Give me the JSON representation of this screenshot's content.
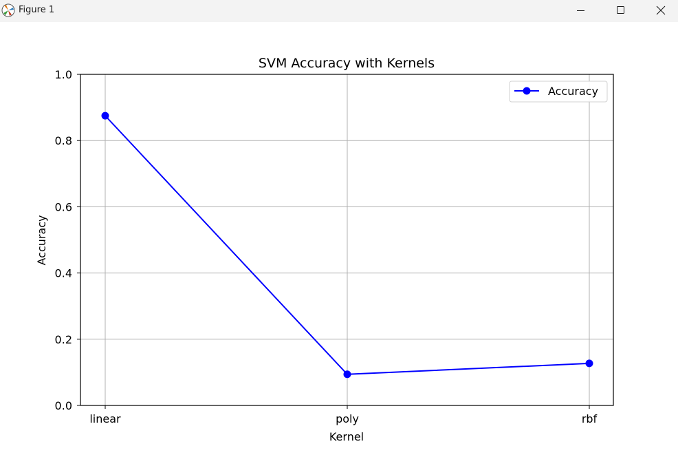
{
  "window": {
    "title": "Figure 1",
    "icons": {
      "app": "matplotlib-icon",
      "minimize": "minimize-icon",
      "maximize": "maximize-icon",
      "close": "close-icon"
    }
  },
  "chart_data": {
    "type": "line",
    "title": "SVM Accuracy with Kernels",
    "xlabel": "Kernel",
    "ylabel": "Accuracy",
    "categories": [
      "linear",
      "poly",
      "rbf"
    ],
    "series": [
      {
        "name": "Accuracy",
        "values": [
          0.875,
          0.094,
          0.127
        ],
        "color": "#0000ff",
        "marker": "circle"
      }
    ],
    "ylim": [
      0.0,
      1.0
    ],
    "yticks": [
      "0.0",
      "0.2",
      "0.4",
      "0.6",
      "0.8",
      "1.0"
    ],
    "grid": true,
    "legend": "top-right"
  }
}
